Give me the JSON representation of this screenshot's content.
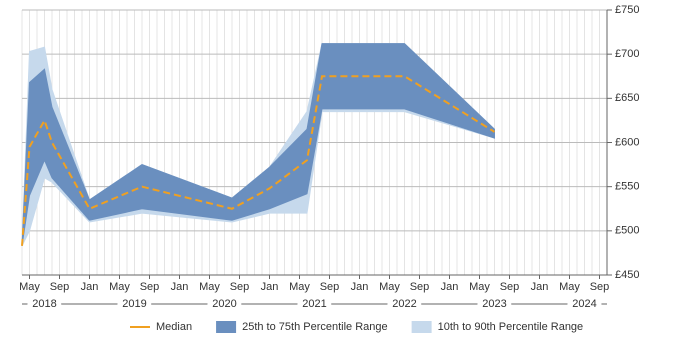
{
  "chart_data": {
    "type": "line",
    "x": [
      "2018-04",
      "2018-05",
      "2018-07",
      "2018-08",
      "2019-01",
      "2019-08",
      "2020-08",
      "2021-01",
      "2021-06",
      "2021-08",
      "2022-07",
      "2023-07"
    ],
    "series": [
      {
        "name": "Median",
        "color": "#f0a020",
        "values": [
          483,
          595,
          625,
          600,
          525,
          550,
          525,
          548,
          580,
          675,
          675,
          612
        ]
      }
    ],
    "bands": [
      {
        "name": "10th to 90th Percentile Range",
        "color": "#c6d9ec",
        "low": [
          483,
          500,
          560,
          555,
          510,
          520,
          510,
          520,
          520,
          635,
          635,
          605
        ],
        "high": [
          483,
          703,
          708,
          660,
          535,
          575,
          537,
          572,
          635,
          712,
          712,
          615
        ]
      },
      {
        "name": "25th to 75th Percentile Range",
        "color": "#6a8fbf",
        "low": [
          483,
          540,
          580,
          560,
          512,
          525,
          512,
          525,
          542,
          638,
          638,
          605
        ],
        "high": [
          483,
          668,
          683,
          640,
          535,
          575,
          537,
          572,
          615,
          712,
          712,
          615
        ]
      }
    ],
    "xlim": [
      "2018-04",
      "2024-10"
    ],
    "xticks": [
      {
        "value": "2018-05",
        "label": "May"
      },
      {
        "value": "2018-09",
        "label": "Sep"
      },
      {
        "value": "2019-01",
        "label": "Jan"
      },
      {
        "value": "2019-05",
        "label": "May"
      },
      {
        "value": "2019-09",
        "label": "Sep"
      },
      {
        "value": "2020-01",
        "label": "Jan"
      },
      {
        "value": "2020-05",
        "label": "May"
      },
      {
        "value": "2020-09",
        "label": "Sep"
      },
      {
        "value": "2021-01",
        "label": "Jan"
      },
      {
        "value": "2021-05",
        "label": "May"
      },
      {
        "value": "2021-09",
        "label": "Sep"
      },
      {
        "value": "2022-01",
        "label": "Jan"
      },
      {
        "value": "2022-05",
        "label": "May"
      },
      {
        "value": "2022-09",
        "label": "Sep"
      },
      {
        "value": "2023-01",
        "label": "Jan"
      },
      {
        "value": "2023-05",
        "label": "May"
      },
      {
        "value": "2023-09",
        "label": "Sep"
      },
      {
        "value": "2024-01",
        "label": "Jan"
      },
      {
        "value": "2024-05",
        "label": "May"
      },
      {
        "value": "2024-09",
        "label": "Sep"
      }
    ],
    "year_labels": [
      {
        "value": "2018-07",
        "label": "2018"
      },
      {
        "value": "2019-07",
        "label": "2019"
      },
      {
        "value": "2020-07",
        "label": "2020"
      },
      {
        "value": "2021-07",
        "label": "2021"
      },
      {
        "value": "2022-07",
        "label": "2022"
      },
      {
        "value": "2023-07",
        "label": "2023"
      },
      {
        "value": "2024-07",
        "label": "2024"
      }
    ],
    "ylim": [
      450,
      750
    ],
    "yticks": [
      {
        "value": 450,
        "label": "£450"
      },
      {
        "value": 500,
        "label": "£500"
      },
      {
        "value": 550,
        "label": "£550"
      },
      {
        "value": 600,
        "label": "£600"
      },
      {
        "value": 650,
        "label": "£650"
      },
      {
        "value": 700,
        "label": "£700"
      },
      {
        "value": 750,
        "label": "£750"
      }
    ],
    "grid": true
  }
}
